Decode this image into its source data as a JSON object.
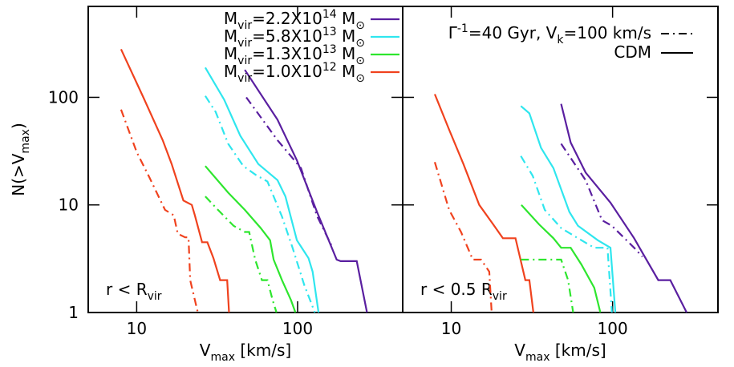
{
  "chart_data": [
    {
      "type": "line",
      "log_x": true,
      "log_y": true,
      "x_label": "V_{max} [km/s]",
      "y_label": "N(>V_{max})",
      "annotation": "r < R_{vir}",
      "xlim": [
        5,
        450
      ],
      "ylim": [
        1,
        700
      ],
      "xticks": [
        10,
        100
      ],
      "yticks": [
        1,
        10,
        100
      ],
      "legend": [
        {
          "name": "M_{vir}=2.2X10^{14} M_{⊙}",
          "color": "#5a1fa0"
        },
        {
          "name": "M_{vir}=5.8X10^{13} M_{⊙}",
          "color": "#2fe6ee"
        },
        {
          "name": "M_{vir}=1.3X10^{13} M_{⊙}",
          "color": "#2ee62e"
        },
        {
          "name": "M_{vir}=1.0X10^{12} M_{⊙}",
          "color": "#f0421e"
        }
      ],
      "series": [
        {
          "color": "#f0421e",
          "style": "solid",
          "x": [
            8,
            11,
            14.5,
            16.5,
            19.5,
            22,
            23,
            25.5,
            27.5,
            30,
            33,
            36.5,
            37.5
          ],
          "values": [
            280,
            100,
            40,
            24,
            11,
            10,
            8,
            4.5,
            4.5,
            3.2,
            2,
            2,
            1
          ]
        },
        {
          "color": "#f0421e",
          "style": "dashdot",
          "x": [
            8,
            10,
            12,
            15,
            17,
            18,
            20,
            21,
            21.5,
            24
          ],
          "values": [
            77,
            31,
            18,
            9,
            8,
            5.4,
            5,
            5,
            2,
            1
          ]
        },
        {
          "color": "#2ee62e",
          "style": "solid",
          "x": [
            26.7,
            37,
            47,
            59,
            67.5,
            71,
            80,
            91,
            97
          ],
          "values": [
            23,
            13,
            9,
            6.1,
            4.7,
            3.1,
            2,
            1.3,
            1
          ]
        },
        {
          "color": "#2ee62e",
          "style": "dashdot",
          "x": [
            26.7,
            32,
            40,
            47,
            50,
            54.5,
            60,
            65,
            70,
            74
          ],
          "values": [
            12,
            9,
            6.4,
            5.6,
            5.6,
            3.1,
            2,
            2,
            1.3,
            1
          ]
        },
        {
          "color": "#2fe6ee",
          "style": "solid",
          "x": [
            26.7,
            35,
            44,
            57,
            75,
            84,
            99,
            117,
            124,
            135
          ],
          "values": [
            189,
            95,
            44,
            24,
            17,
            12,
            4.7,
            3.2,
            2.4,
            1
          ]
        },
        {
          "color": "#2fe6ee",
          "style": "dashdot",
          "x": [
            26.7,
            31,
            37,
            46,
            55,
            65,
            80,
            93,
            110,
            128
          ],
          "values": [
            103,
            73,
            37,
            23,
            19,
            16.5,
            7.8,
            4,
            1.8,
            1
          ]
        },
        {
          "color": "#5a1fa0",
          "style": "solid",
          "x": [
            47,
            75,
            99,
            132,
            175,
            185,
            233,
            270
          ],
          "values": [
            180,
            62,
            26,
            8.6,
            3.1,
            3,
            3,
            1
          ]
        },
        {
          "color": "#5a1fa0",
          "style": "dashdot",
          "x": [
            48,
            75,
            105,
            132,
            165
          ],
          "values": [
            100,
            40,
            22,
            7.9,
            4
          ]
        }
      ]
    },
    {
      "type": "line",
      "log_x": true,
      "log_y": true,
      "x_label": "V_{max} [km/s]",
      "annotation": "r < 0.5 R_{vir}",
      "xlim": [
        5,
        450
      ],
      "ylim": [
        1,
        700
      ],
      "xticks": [
        10,
        100
      ],
      "yticks": [
        1,
        10,
        100
      ],
      "style_legend": [
        {
          "name": "Γ^{-1}=40 Gyr, V_{k}=100 km/s",
          "style": "dashdot"
        },
        {
          "name": "CDM",
          "style": "solid"
        }
      ],
      "series": [
        {
          "color": "#f0421e",
          "style": "solid",
          "x": [
            7.9,
            9.7,
            11.9,
            14.9,
            18.2,
            20.9,
            25,
            28.8,
            30.5,
            32.3
          ],
          "values": [
            107,
            50,
            24,
            10,
            6.6,
            4.9,
            4.9,
            2,
            2,
            1
          ]
        },
        {
          "color": "#f0421e",
          "style": "dashdot",
          "x": [
            7.9,
            9.7,
            11.5,
            13.6,
            15.3,
            17.2,
            17.8
          ],
          "values": [
            25,
            9,
            5.6,
            3.1,
            3.1,
            2.4,
            1
          ]
        },
        {
          "color": "#2ee62e",
          "style": "solid",
          "x": [
            27.2,
            35,
            43,
            48,
            55,
            64,
            77,
            84
          ],
          "values": [
            10,
            6.6,
            4.9,
            4,
            4,
            2.8,
            1.7,
            1
          ]
        },
        {
          "color": "#2ee62e",
          "style": "dashdot",
          "x": [
            27,
            48,
            53,
            57
          ],
          "values": [
            3.1,
            3.1,
            2,
            1
          ]
        },
        {
          "color": "#2fe6ee",
          "style": "solid",
          "x": [
            27,
            30.5,
            36,
            43,
            54,
            61,
            81,
            97,
            104
          ],
          "values": [
            83,
            71,
            34,
            22,
            8.6,
            6.4,
            4.7,
            4,
            1
          ]
        },
        {
          "color": "#2fe6ee",
          "style": "dashdot",
          "x": [
            27,
            32,
            38,
            48,
            61,
            77,
            93,
            99
          ],
          "values": [
            28.5,
            18.6,
            9,
            6.1,
            4.9,
            4,
            4,
            1
          ]
        },
        {
          "color": "#5a1fa0",
          "style": "solid",
          "x": [
            48,
            55,
            68,
            97,
            136,
            153,
            192,
            228,
            288
          ],
          "values": [
            87,
            38,
            20,
            10.5,
            4.9,
            3.6,
            2,
            2,
            1
          ]
        },
        {
          "color": "#5a1fa0",
          "style": "dashdot",
          "x": [
            48,
            68,
            81,
            86,
            99,
            136,
            153
          ],
          "values": [
            37,
            17,
            9,
            7.2,
            6.4,
            4,
            3.3
          ]
        }
      ]
    }
  ]
}
